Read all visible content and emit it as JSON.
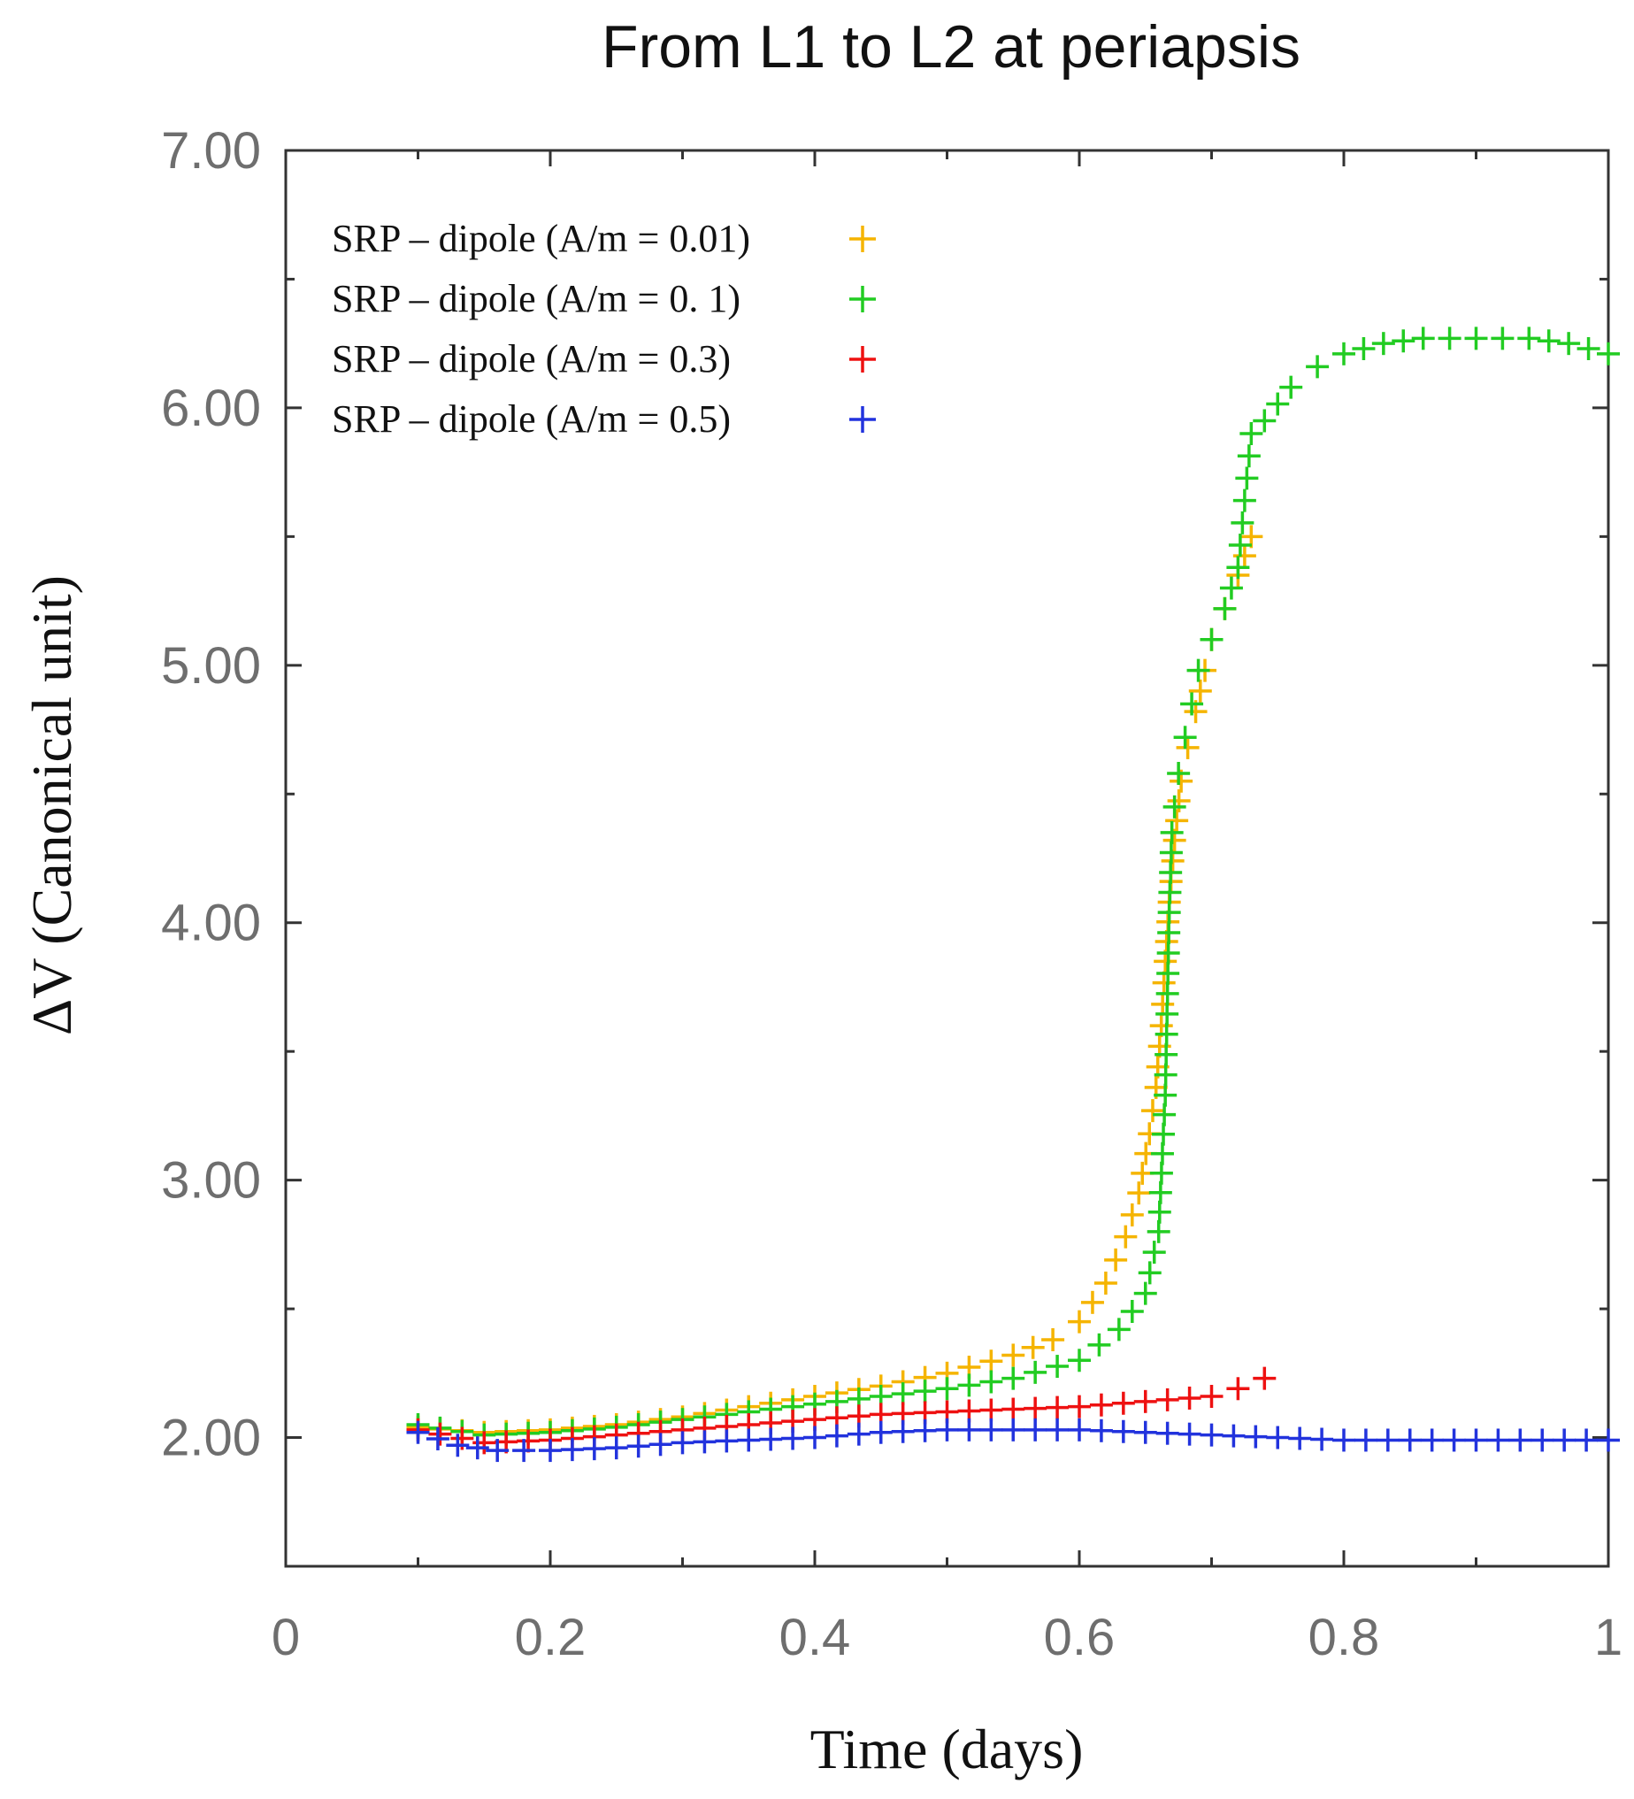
{
  "chart_data": {
    "type": "scatter",
    "title": "From L1 to L2 at periapsis",
    "xlabel": "Time  (days)",
    "ylabel": "ΔV  (Canonical unit)",
    "xlim": [
      0,
      1
    ],
    "ylim": [
      1.5,
      7.0
    ],
    "x_ticks": [
      0,
      0.2,
      0.4,
      0.6,
      0.8,
      1
    ],
    "x_tick_labels": [
      "0",
      "0.2",
      "0.4",
      "0.6",
      "0.8",
      "1"
    ],
    "y_ticks": [
      2,
      3,
      4,
      5,
      6,
      7
    ],
    "y_tick_labels": [
      "2.00",
      "3.00",
      "4.00",
      "5.00",
      "6.00",
      "7.00"
    ],
    "grid": false,
    "legend_position": "top-left",
    "marker": "+",
    "series": [
      {
        "name": "SRP – dipole (A/m = 0.01)",
        "color": "#f5b400",
        "x": [
          0.1,
          0.15,
          0.2,
          0.25,
          0.3,
          0.35,
          0.4,
          0.45,
          0.5,
          0.55,
          0.58,
          0.6,
          0.62,
          0.635,
          0.645,
          0.653,
          0.658,
          0.662,
          0.665,
          0.668,
          0.672,
          0.677,
          0.682,
          0.688,
          0.695,
          0.7,
          0.71,
          0.72,
          0.73
        ],
        "y": [
          2.04,
          2.02,
          2.03,
          2.05,
          2.08,
          2.12,
          2.16,
          2.2,
          2.25,
          2.32,
          2.38,
          2.45,
          2.6,
          2.78,
          2.95,
          3.18,
          3.36,
          3.6,
          3.85,
          4.08,
          4.32,
          4.55,
          4.68,
          4.82,
          4.98,
          5.1,
          5.22,
          5.35,
          5.5
        ]
      },
      {
        "name": "SRP – dipole (A/m = 0. 1)",
        "color": "#22cc22",
        "x": [
          0.1,
          0.15,
          0.2,
          0.25,
          0.3,
          0.35,
          0.4,
          0.45,
          0.5,
          0.55,
          0.6,
          0.63,
          0.65,
          0.66,
          0.665,
          0.668,
          0.67,
          0.672,
          0.675,
          0.68,
          0.685,
          0.69,
          0.7,
          0.71,
          0.72,
          0.73,
          0.74,
          0.76,
          0.78,
          0.8,
          0.83,
          0.86,
          0.9,
          0.94,
          0.97,
          1.0
        ],
        "y": [
          2.05,
          2.01,
          2.02,
          2.04,
          2.07,
          2.1,
          2.13,
          2.16,
          2.19,
          2.23,
          2.3,
          2.42,
          2.56,
          2.8,
          3.33,
          4.04,
          4.35,
          4.45,
          4.58,
          4.72,
          4.85,
          4.98,
          5.1,
          5.22,
          5.38,
          5.9,
          5.95,
          6.08,
          6.16,
          6.21,
          6.25,
          6.27,
          6.27,
          6.27,
          6.25,
          6.21
        ]
      },
      {
        "name": "SRP – dipole (A/m = 0.3)",
        "color": "#ee1111",
        "x": [
          0.1,
          0.15,
          0.2,
          0.25,
          0.3,
          0.35,
          0.4,
          0.45,
          0.5,
          0.55,
          0.6,
          0.65,
          0.7,
          0.72,
          0.74
        ],
        "y": [
          2.03,
          1.98,
          1.99,
          2.01,
          2.03,
          2.05,
          2.07,
          2.09,
          2.1,
          2.11,
          2.12,
          2.14,
          2.16,
          2.19,
          2.23
        ]
      },
      {
        "name": "SRP – dipole (A/m = 0.5)",
        "color": "#2233dd",
        "x": [
          0.1,
          0.13,
          0.16,
          0.2,
          0.25,
          0.3,
          0.35,
          0.4,
          0.45,
          0.5,
          0.55,
          0.6,
          0.65,
          0.7,
          0.75,
          0.8,
          0.85,
          0.9,
          0.95,
          1.0
        ],
        "y": [
          2.02,
          1.97,
          1.95,
          1.95,
          1.96,
          1.98,
          1.99,
          2.0,
          2.02,
          2.03,
          2.03,
          2.03,
          2.02,
          2.01,
          2.0,
          1.99,
          1.99,
          1.99,
          1.99,
          1.99
        ]
      }
    ]
  }
}
